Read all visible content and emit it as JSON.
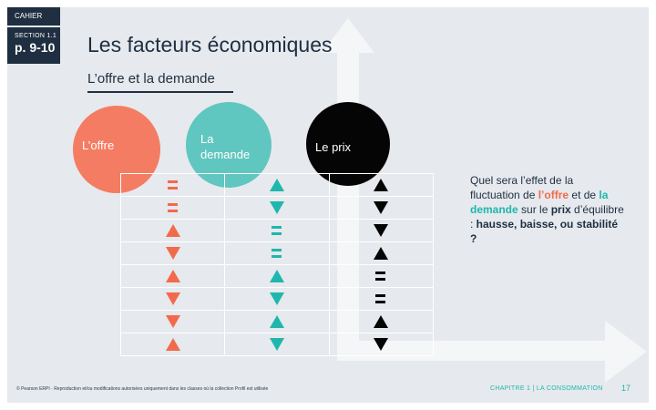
{
  "header": {
    "cahier": "CAHIER",
    "section_label": "SECTION 1.1",
    "pages": "p. 9-10",
    "title": "Les facteurs économiques",
    "subtitle": "L’offre et la demande"
  },
  "circles": {
    "offre": "L’offre",
    "demande": "La demande",
    "prix": "Le prix"
  },
  "colors": {
    "offre": "#f26a4c",
    "demande": "#1fb7ad",
    "prix": "#050505",
    "navy": "#1f2f41"
  },
  "table": {
    "rows": [
      [
        "eq",
        "up",
        "up"
      ],
      [
        "eq",
        "down",
        "down"
      ],
      [
        "up",
        "eq",
        "down"
      ],
      [
        "down",
        "eq",
        "up"
      ],
      [
        "up",
        "up",
        "eq"
      ],
      [
        "down",
        "down",
        "eq"
      ],
      [
        "down",
        "up",
        "up"
      ],
      [
        "up",
        "down",
        "down"
      ]
    ]
  },
  "question": {
    "p1": "Quel sera l’effet de la fluctuation de ",
    "offre": "l’offre",
    "p2": " et de ",
    "demande": "la demande",
    "p3": " sur le ",
    "prix": "prix",
    "p4": " d’équilibre : ",
    "options": "hausse, baisse, ou stabilité ?"
  },
  "footer": {
    "copyright": "© Pearson ERPI · Reproduction et/ou modifications autorisées uniquement dans les classes où la collection Profil est utilisée",
    "chapter": "CHAPITRE 1 | LA CONSOMMATION",
    "page": "17"
  }
}
